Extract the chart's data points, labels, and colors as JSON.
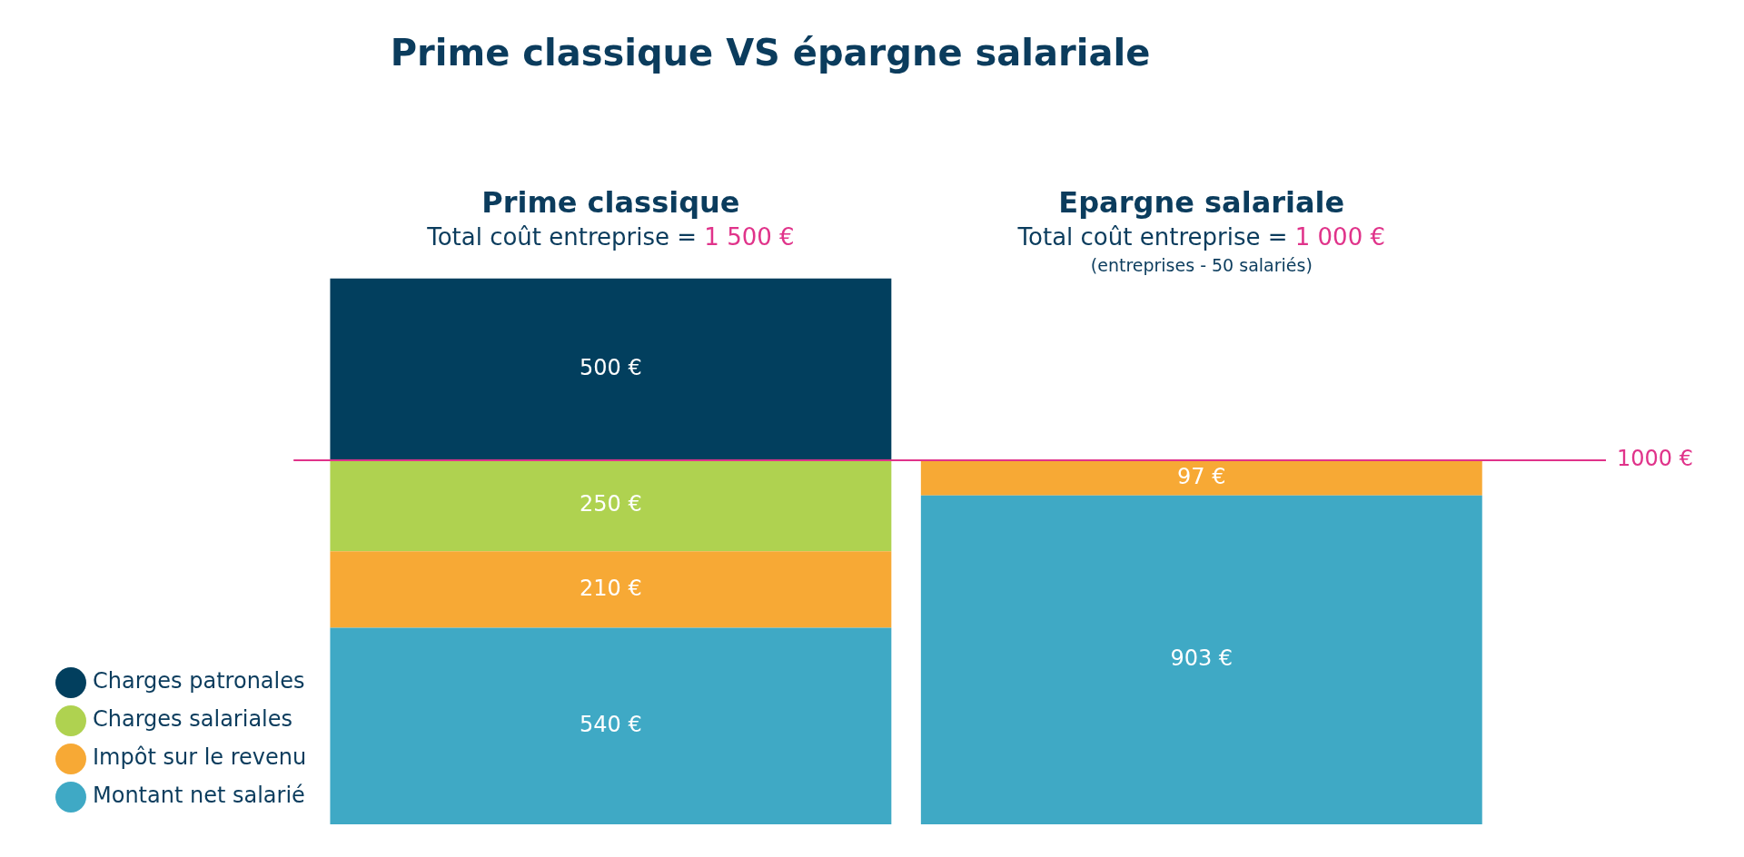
{
  "chart_data": {
    "type": "bar",
    "title": "Prime classique VS épargne salariale",
    "stacked": true,
    "grid": false,
    "legend": "bottom left",
    "categories": [
      "Prime classique",
      "Epargne salariale"
    ],
    "series": [
      {
        "name": "Montant net salarié",
        "color": "#3fa9c5",
        "values": [
          540,
          903
        ],
        "value_labels": [
          "540 €",
          "903 €"
        ]
      },
      {
        "name": "Impôt sur le revenu",
        "color": "#f7a935",
        "values": [
          210,
          97
        ],
        "value_labels": [
          "210 €",
          "97 €"
        ]
      },
      {
        "name": "Charges salariales",
        "color": "#afd250",
        "values": [
          250,
          null
        ],
        "value_labels": [
          "250 €",
          null
        ]
      },
      {
        "name": "Charges patronales",
        "color": "#023f5e",
        "values": [
          500,
          null
        ],
        "value_labels": [
          "500 €",
          null
        ]
      }
    ],
    "ref_lines": [
      {
        "axis": "y",
        "value": 1000,
        "label": "1000 €",
        "color": "#e0338a"
      }
    ],
    "annotations": [
      "Total coût entreprise = 1 500 €",
      "Total coût entreprise = 1 000 €",
      "(entreprises - 50 salariés)"
    ]
  }
}
